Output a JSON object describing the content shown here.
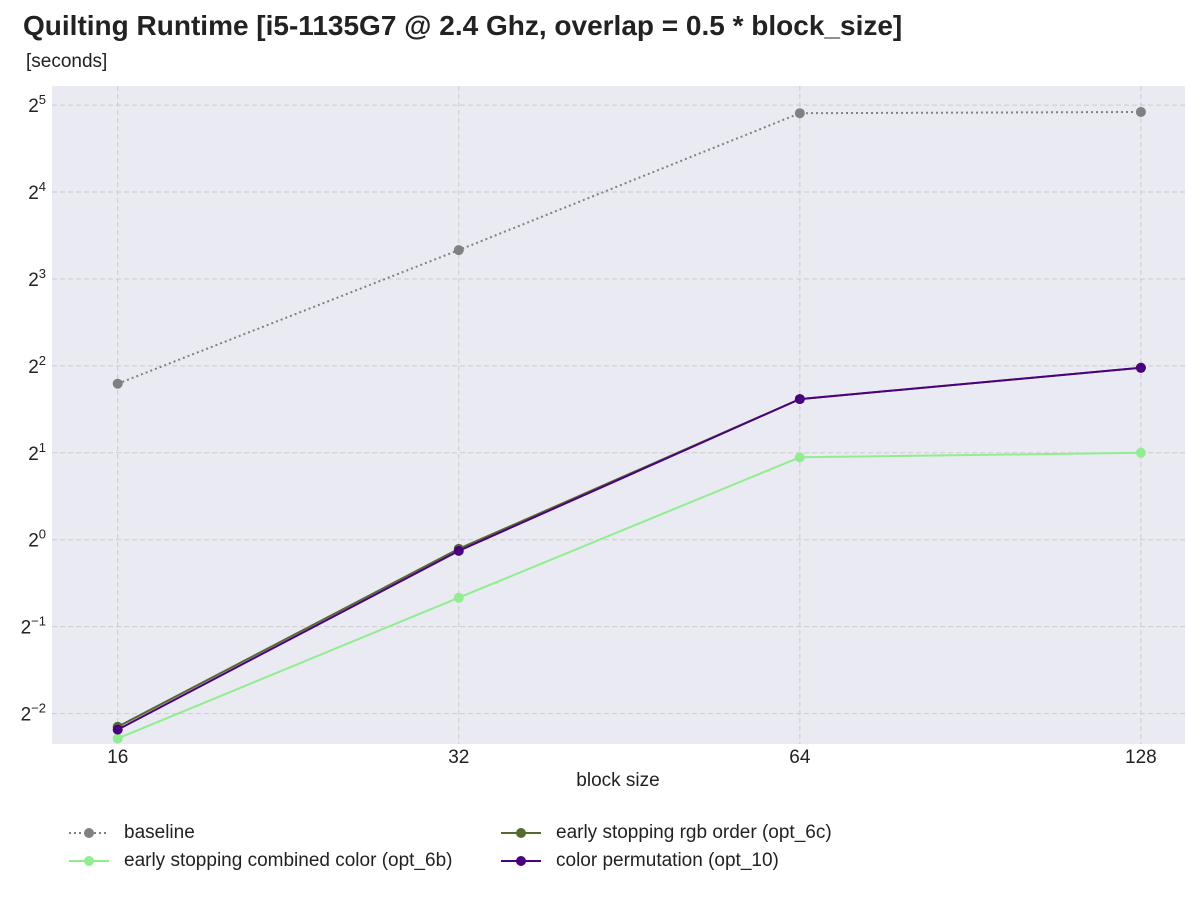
{
  "chart_data": {
    "type": "line",
    "title": "Quilting Runtime [i5-1135G7 @ 2.4 Ghz, overlap = 0.5 * block_size]",
    "ylabel": "[seconds]",
    "xlabel": "block size",
    "x": [
      16,
      32,
      64,
      128
    ],
    "xscale": "log2",
    "yscale": "log2",
    "ylim_exponent": [
      -2.35,
      5.22
    ],
    "ytick_exponents": [
      5,
      4,
      3,
      2,
      1,
      0,
      -1,
      -2
    ],
    "grid": true,
    "legend_position": "bottom",
    "series": [
      {
        "name": "baseline",
        "values": [
          3.47,
          10.07,
          30.0,
          30.3
        ],
        "color": "#808080",
        "style": "dotted"
      },
      {
        "name": "early stopping combined color (opt_6b)",
        "values": [
          0.205,
          0.63,
          1.93,
          2.0
        ],
        "color": "#90ee90",
        "style": "solid"
      },
      {
        "name": "early stopping rgb order (opt_6c)",
        "values": [
          0.225,
          0.93,
          3.07,
          3.94
        ],
        "color": "#556b2f",
        "style": "solid"
      },
      {
        "name": "color permutation (opt_10)",
        "values": [
          0.22,
          0.915,
          3.07,
          3.94
        ],
        "color": "#4b0082",
        "style": "solid"
      }
    ]
  }
}
